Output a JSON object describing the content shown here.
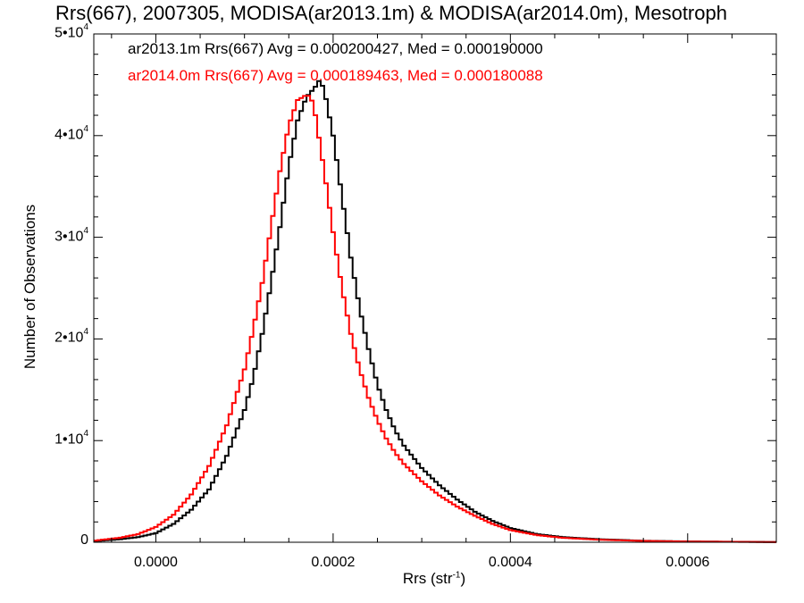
{
  "chart_data": {
    "type": "line",
    "title": "Rrs(667), 2007305, MODISA(ar2013.1m) & MODISA(ar2014.0m), Mesotroph",
    "xlabel_base": "Rrs (str",
    "xlabel_sup": "-1",
    "xlabel_end": ")",
    "ylabel": "Number of Observations",
    "xlim": [
      -7e-05,
      0.0007
    ],
    "ylim": [
      0,
      50000
    ],
    "grid": false,
    "legend_position": "top-left",
    "x_ticks": [
      {
        "value": 0.0,
        "label": "0.0000"
      },
      {
        "value": 0.0002,
        "label": "0.0002"
      },
      {
        "value": 0.0004,
        "label": "0.0004"
      },
      {
        "value": 0.0006,
        "label": "0.0006"
      }
    ],
    "y_ticks": [
      {
        "value": 0,
        "base": "0",
        "sup": ""
      },
      {
        "value": 10000,
        "base": "1•10",
        "sup": "4"
      },
      {
        "value": 20000,
        "base": "2•10",
        "sup": "4"
      },
      {
        "value": 30000,
        "base": "3•10",
        "sup": "4"
      },
      {
        "value": 40000,
        "base": "4•10",
        "sup": "4"
      },
      {
        "value": 50000,
        "base": "5•10",
        "sup": "4"
      }
    ],
    "series": [
      {
        "name": "ar2013.1m Rrs(667) Avg = 0.000200427, Med = 0.000190000",
        "color": "#000000",
        "x": [
          -7e-05,
          -4e-05,
          -2e-05,
          0.0,
          2e-05,
          4e-05,
          6e-05,
          8e-05,
          0.0001,
          0.00011,
          0.00012,
          0.00013,
          0.00014,
          0.00015,
          0.00016,
          0.00017,
          0.00018,
          0.000185,
          0.00019,
          0.0002,
          0.00021,
          0.00022,
          0.00023,
          0.00024,
          0.00025,
          0.00026,
          0.00027,
          0.00028,
          0.0003,
          0.00032,
          0.00034,
          0.00036,
          0.00038,
          0.0004,
          0.00043,
          0.00046,
          0.0005,
          0.00055,
          0.0006,
          0.0007
        ],
        "y": [
          100,
          300,
          500,
          900,
          1800,
          3200,
          5200,
          8500,
          13000,
          16200,
          20500,
          25500,
          31000,
          37000,
          41500,
          43800,
          44800,
          45500,
          44500,
          40000,
          34000,
          28000,
          23000,
          19000,
          15500,
          13000,
          11000,
          9500,
          7300,
          5600,
          4200,
          3000,
          2100,
          1400,
          800,
          500,
          300,
          150,
          80,
          20
        ]
      },
      {
        "name": "ar2014.0m Rrs(667) Avg = 0.000189463, Med = 0.000180088",
        "color": "#ff0000",
        "x": [
          -7e-05,
          -4e-05,
          -2e-05,
          0.0,
          2e-05,
          4e-05,
          6e-05,
          8e-05,
          0.0001,
          0.00011,
          0.00012,
          0.00013,
          0.00014,
          0.00015,
          0.00016,
          0.00017,
          0.000175,
          0.00018,
          0.00019,
          0.0002,
          0.00021,
          0.00022,
          0.00023,
          0.00024,
          0.00025,
          0.00026,
          0.00027,
          0.00028,
          0.0003,
          0.00032,
          0.00034,
          0.00036,
          0.00038,
          0.0004,
          0.00043,
          0.00046,
          0.0005,
          0.00055,
          0.0006,
          0.0007
        ],
        "y": [
          150,
          450,
          800,
          1500,
          2700,
          4700,
          7500,
          11500,
          17000,
          21000,
          25500,
          31000,
          36500,
          41000,
          43500,
          44000,
          43800,
          42000,
          36500,
          30500,
          25000,
          20500,
          17000,
          14200,
          12000,
          10200,
          8800,
          7700,
          6000,
          4600,
          3500,
          2600,
          1800,
          1200,
          700,
          430,
          250,
          130,
          70,
          15
        ]
      }
    ]
  }
}
